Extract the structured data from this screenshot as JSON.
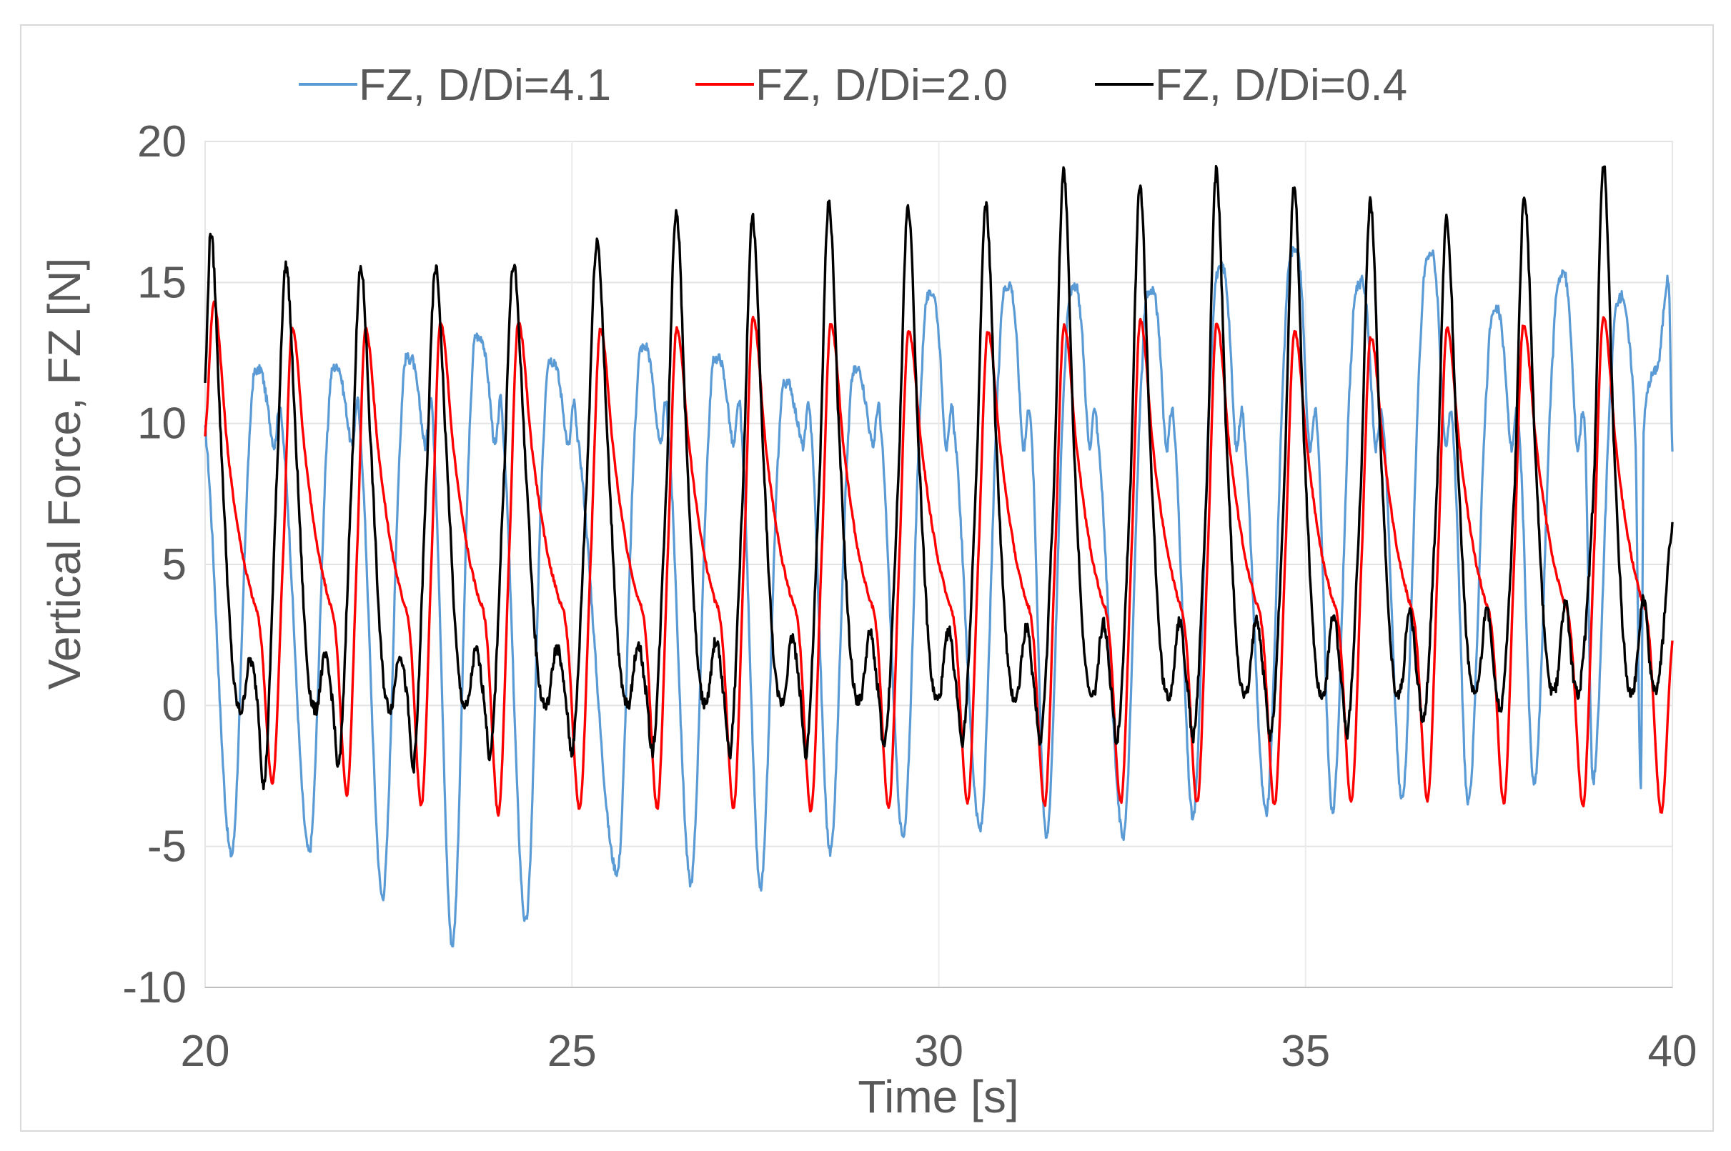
{
  "chart_data": {
    "type": "line",
    "title": "",
    "xlabel": "Time [s]",
    "ylabel": "Vertical Force, FZ [N]",
    "xlim": [
      20,
      40
    ],
    "ylim": [
      -10,
      20
    ],
    "xticks": [
      20,
      25,
      30,
      35,
      40
    ],
    "yticks": [
      -10,
      -5,
      0,
      5,
      10,
      15,
      20
    ],
    "grid": true,
    "legend_position": "top",
    "series": [
      {
        "name": "FZ, D/Di=4.1",
        "color": "#5b9bd5",
        "model": {
          "period_s": 0.905,
          "peak_times_s": [
            20.74,
            21.8,
            22.8,
            23.75,
            24.75,
            26.0,
            27.0,
            27.95,
            28.9,
            29.9,
            30.95,
            31.85,
            32.9,
            33.85,
            34.85,
            35.75,
            36.7,
            37.6,
            38.5,
            39.3,
            39.95
          ],
          "peak_values": [
            11.9,
            12.0,
            12.3,
            13.0,
            12.2,
            12.7,
            12.3,
            11.4,
            11.9,
            14.6,
            14.9,
            14.8,
            14.7,
            15.5,
            16.2,
            15.0,
            16.0,
            14.0,
            15.3,
            14.5,
            15.0
          ],
          "trough_values": [
            -5.3,
            -5.2,
            -6.8,
            -8.5,
            -7.7,
            -5.9,
            -6.3,
            -6.5,
            -5.2,
            -4.7,
            -4.4,
            -4.7,
            -4.6,
            -4.0,
            -3.8,
            -3.8,
            -3.3,
            -3.5,
            -2.8,
            -2.7,
            -2.9
          ],
          "shoulder_value": 9.2
        }
      },
      {
        "name": "FZ, D/Di=2.0",
        "color": "#ff0000",
        "model": {
          "period_s": 1.05,
          "peak_times_s": [
            20.12,
            21.18,
            22.18,
            23.2,
            24.26,
            25.38,
            26.42,
            27.46,
            28.52,
            29.58,
            30.66,
            31.7,
            32.74,
            33.78,
            34.84,
            35.88,
            36.92,
            37.96,
            39.05
          ],
          "peak_values": [
            14.3,
            13.3,
            13.3,
            13.5,
            13.5,
            13.3,
            13.3,
            13.7,
            13.5,
            13.2,
            13.2,
            13.4,
            13.6,
            13.5,
            13.2,
            13.0,
            13.3,
            13.4,
            13.7
          ],
          "trough_values": [
            -2.7,
            -3.1,
            -3.5,
            -3.8,
            -3.6,
            -3.6,
            -3.6,
            -3.7,
            -3.6,
            -3.4,
            -3.5,
            -3.4,
            -3.4,
            -3.5,
            -3.4,
            -3.3,
            -3.4,
            -3.5,
            -3.8
          ],
          "shoulder_value": 4.0,
          "end_value": 2.3
        }
      },
      {
        "name": "FZ, D/Di=0.4",
        "color": "#000000",
        "model": {
          "period_s": 1.05,
          "peak_times_s": [
            20.08,
            21.1,
            22.12,
            23.14,
            24.2,
            25.34,
            26.42,
            27.46,
            28.5,
            29.58,
            30.64,
            31.7,
            32.74,
            33.78,
            34.84,
            35.88,
            36.92,
            37.98,
            39.06
          ],
          "peak_values": [
            16.8,
            15.6,
            15.5,
            15.5,
            15.6,
            16.5,
            17.6,
            17.3,
            17.8,
            17.7,
            17.7,
            19.0,
            18.5,
            18.9,
            18.4,
            17.8,
            17.3,
            18.1,
            19.2
          ],
          "trough_values": [
            -2.6,
            -1.9,
            -1.9,
            -1.5,
            -1.3,
            -1.3,
            -1.4,
            -1.4,
            -1.2,
            -0.9,
            -0.9,
            -0.9,
            -0.8,
            -0.8,
            -0.6,
            -0.2,
            0.3,
            1.0,
            1.0
          ],
          "shoulder_value": 1.4,
          "end_value": 6.5
        }
      }
    ]
  }
}
